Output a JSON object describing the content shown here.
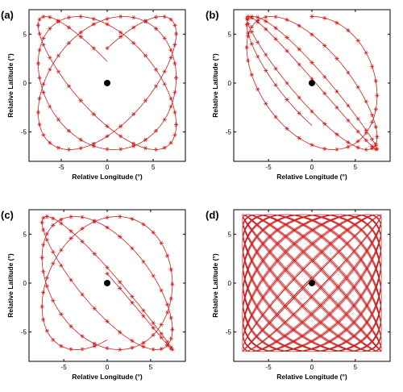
{
  "chart_data": [
    {
      "type": "scatter",
      "panel_label": "(a)",
      "xlabel": "Relative Longitude (°)",
      "ylabel": "Relative Latitude (°)",
      "xlim": [
        -8.5,
        8.5
      ],
      "ylim": [
        -8,
        7.5
      ],
      "xticks": [
        -5,
        0,
        5
      ],
      "yticks": [
        -5,
        0,
        5
      ],
      "center_point": [
        0,
        0
      ],
      "orbit": {
        "Ax": 7.5,
        "Ay": 6.8,
        "phase": 0.55,
        "ratio": 1.12,
        "turns": 3,
        "markers": true
      },
      "series_color": "#cc1f1f"
    },
    {
      "type": "scatter",
      "panel_label": "(b)",
      "xlabel": "Relative Longitude (°)",
      "ylabel": "Relative Latitude (°)",
      "xlim": [
        -9,
        9
      ],
      "ylim": [
        -8,
        7.5
      ],
      "xticks": [
        -5,
        0,
        5
      ],
      "yticks": [
        -5,
        0,
        5
      ],
      "center_point": [
        0,
        0
      ],
      "orbit": {
        "Ax": 7.5,
        "Ay": 6.8,
        "phase": 1.57,
        "ratio": 1.12,
        "turns": 3,
        "markers": true
      },
      "series_color": "#cc1f1f"
    },
    {
      "type": "scatter",
      "panel_label": "(c)",
      "xlabel": "Relative Longitude (°)",
      "ylabel": "Relative Latitude (°)",
      "xlim": [
        -9,
        9
      ],
      "ylim": [
        -8,
        7.5
      ],
      "xticks": [
        -5,
        0,
        5
      ],
      "yticks": [
        -5,
        0,
        5
      ],
      "center_point": [
        0,
        0
      ],
      "orbit": {
        "Ax": 7.5,
        "Ay": 6.8,
        "phase": 3.0,
        "ratio": 1.12,
        "turns": 3,
        "markers": true
      },
      "series_color": "#cc1f1f"
    },
    {
      "type": "line",
      "panel_label": "(d)",
      "xlabel": "Relative Longitude (°)",
      "ylabel": "Relative Latitude (°)",
      "xlim": [
        -9,
        9
      ],
      "ylim": [
        -8,
        7.5
      ],
      "xticks": [
        -5,
        0,
        5
      ],
      "yticks": [
        -5,
        0,
        5
      ],
      "center_point": [
        0,
        0
      ],
      "orbit": {
        "Ax": 8.0,
        "Ay": 7.0,
        "phase": 0.3,
        "ratio": 1.0437,
        "turns": 45,
        "markers": false
      },
      "series_color": "#cc1f1f"
    }
  ]
}
